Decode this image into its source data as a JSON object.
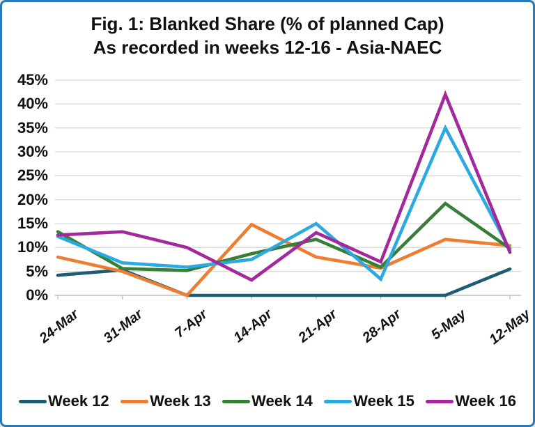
{
  "frame": {
    "border_color": "#2779b8",
    "background_color": "#ffffff"
  },
  "title": {
    "line1": "Fig. 1: Blanked Share (% of planned Cap)",
    "line2": "As recorded in weeks 12-16 - Asia-NAEC"
  },
  "chart_data": {
    "type": "line",
    "title": "Fig. 1: Blanked Share (% of planned Cap) As recorded in weeks 12-16 - Asia-NAEC",
    "categories": [
      "24-Mar",
      "31-Mar",
      "7-Apr",
      "14-Apr",
      "21-Apr",
      "28-Apr",
      "5-May",
      "12-May"
    ],
    "series": [
      {
        "name": "Week 12",
        "color": "#1f5c73",
        "values": [
          4.2,
          5.3,
          0,
          0,
          0,
          0,
          0,
          5.5
        ]
      },
      {
        "name": "Week 13",
        "color": "#ed7d31",
        "values": [
          8.0,
          5.0,
          0,
          14.8,
          8.0,
          5.7,
          11.7,
          10.4
        ]
      },
      {
        "name": "Week 14",
        "color": "#377e36",
        "values": [
          13.3,
          5.6,
          5.2,
          8.7,
          11.7,
          5.9,
          19.2,
          9.8
        ]
      },
      {
        "name": "Week 15",
        "color": "#2ba9e0",
        "values": [
          12.3,
          6.8,
          5.9,
          7.5,
          15.0,
          3.4,
          35.0,
          9.5
        ]
      },
      {
        "name": "Week 16",
        "color": "#a3289c",
        "values": [
          12.6,
          13.3,
          10.0,
          3.2,
          13.1,
          7.0,
          42.0,
          9.0
        ]
      }
    ],
    "ylim": [
      0,
      45
    ],
    "y_tick_step": 5,
    "y_tick_labels": [
      "0%",
      "5%",
      "10%",
      "15%",
      "20%",
      "25%",
      "30%",
      "35%",
      "40%",
      "45%"
    ],
    "grid": true,
    "gridline_color": "#d9d9d9",
    "axis_color": "#bfbfbf",
    "legend_position": "bottom"
  }
}
